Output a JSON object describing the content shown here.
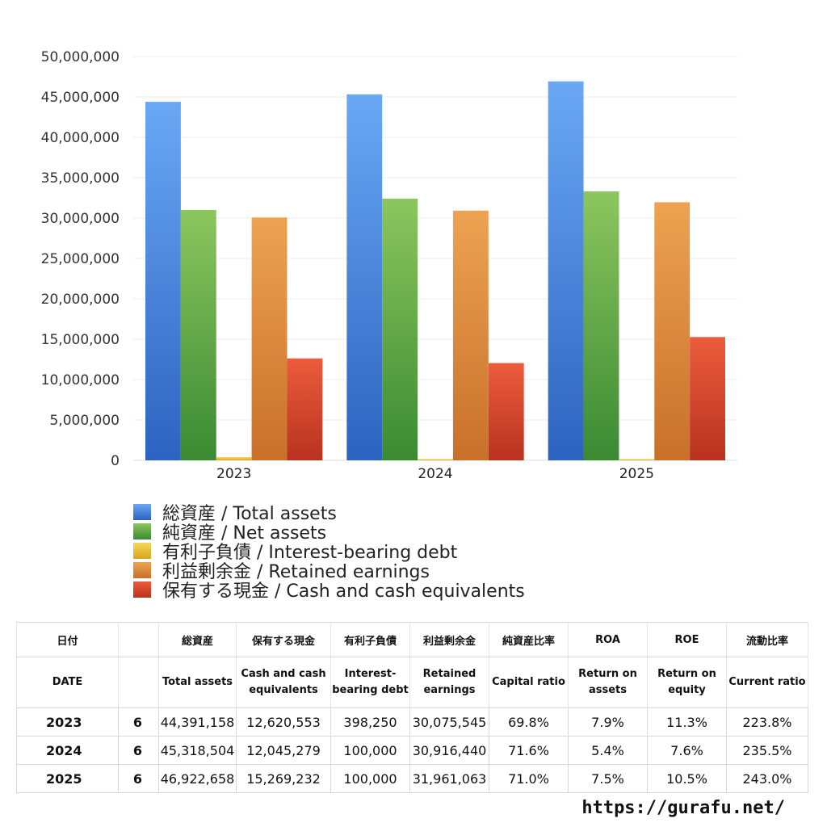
{
  "chart_data": {
    "type": "bar",
    "categories": [
      "2023",
      "2024",
      "2025"
    ],
    "ylim": [
      0,
      50000000
    ],
    "yticks": [
      0,
      5000000,
      10000000,
      15000000,
      20000000,
      25000000,
      30000000,
      35000000,
      40000000,
      45000000,
      50000000
    ],
    "ytick_labels": [
      "0",
      "5,000,000",
      "10,000,000",
      "15,000,000",
      "20,000,000",
      "25,000,000",
      "30,000,000",
      "35,000,000",
      "40,000,000",
      "45,000,000",
      "50,000,000"
    ],
    "grid": true,
    "legend_position": "bottom",
    "series": [
      {
        "name": "総資産 / Total assets",
        "values": [
          44391158,
          45318504,
          46922658
        ],
        "color_top": "#6aa8f5",
        "color_bottom": "#2c63c0"
      },
      {
        "name": "純資産 / Net assets",
        "values": [
          31000000,
          32400000,
          33300000
        ],
        "color_top": "#8cc65e",
        "color_bottom": "#3a8a33"
      },
      {
        "name": "有利子負債 / Interest-bearing debt",
        "values": [
          398250,
          100000,
          100000
        ],
        "color_top": "#f5d85a",
        "color_bottom": "#d9a51f"
      },
      {
        "name": "利益剰余金 / Retained earnings",
        "values": [
          30075545,
          30916440,
          31961063
        ],
        "color_top": "#eda352",
        "color_bottom": "#c8702a"
      },
      {
        "name": "保有する現金 /  Cash and cash equivalents",
        "values": [
          12620553,
          12045279,
          15269232
        ],
        "color_top": "#ec5c3c",
        "color_bottom": "#b8321f"
      }
    ]
  },
  "table": {
    "headers_jp": [
      "日付",
      "",
      "総資産",
      "保有する現金",
      "有利子負債",
      "利益剰余金",
      "純資産比率",
      "ROA",
      "ROE",
      "流動比率"
    ],
    "headers_en": [
      "DATE",
      "",
      "Total assets",
      "Cash and cash equivalents",
      "Interest-bearing debt",
      "Retained earnings",
      "Capital ratio",
      "Return on assets",
      "Return on equity",
      "Current ratio"
    ],
    "rows": [
      [
        "2023",
        "6",
        "44,391,158",
        "12,620,553",
        "398,250",
        "30,075,545",
        "69.8%",
        "7.9%",
        "11.3%",
        "223.8%"
      ],
      [
        "2024",
        "6",
        "45,318,504",
        "12,045,279",
        "100,000",
        "30,916,440",
        "71.6%",
        "5.4%",
        "7.6%",
        "235.5%"
      ],
      [
        "2025",
        "6",
        "46,922,658",
        "15,269,232",
        "100,000",
        "31,961,063",
        "71.0%",
        "7.5%",
        "10.5%",
        "243.0%"
      ]
    ]
  },
  "footer": {
    "url": "https://gurafu.net/"
  }
}
